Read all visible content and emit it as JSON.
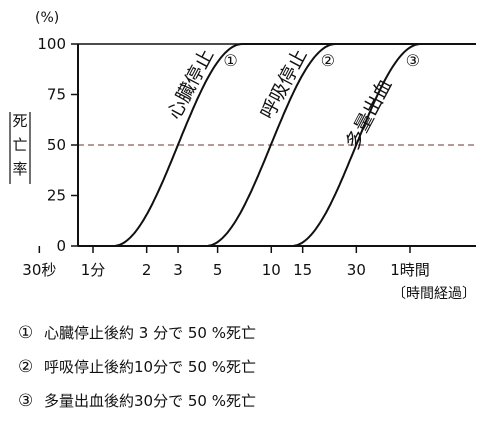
{
  "chart_data": {
    "type": "line",
    "ylabel": "死亡率",
    "yunit": "(%)",
    "xlabel": "〔時間経過〕",
    "x_scale": "log",
    "ylim": [
      0,
      100
    ],
    "yticks": [
      0,
      25,
      50,
      75,
      100
    ],
    "xticks": [
      {
        "label": "30秒",
        "minutes": 0.5
      },
      {
        "label": "1分",
        "minutes": 1
      },
      {
        "label": "2",
        "minutes": 2
      },
      {
        "label": "3",
        "minutes": 3
      },
      {
        "label": "5",
        "minutes": 5
      },
      {
        "label": "10",
        "minutes": 10
      },
      {
        "label": "15",
        "minutes": 15
      },
      {
        "label": "30",
        "minutes": 30
      },
      {
        "label": "1時間",
        "minutes": 60
      }
    ],
    "reference_line": {
      "y": 50,
      "style": "dashed"
    },
    "series": [
      {
        "name": "心臓停止",
        "marker": "①",
        "x": [
          1.3,
          3,
          6.9
        ],
        "y": [
          0,
          50,
          100
        ]
      },
      {
        "name": "呼吸停止",
        "marker": "②",
        "x": [
          4.3,
          10,
          23
        ],
        "y": [
          0,
          50,
          100
        ]
      },
      {
        "name": "多量出血",
        "marker": "③",
        "x": [
          13,
          30,
          69
        ],
        "y": [
          0,
          50,
          100
        ]
      }
    ],
    "notes": [
      {
        "mark": "①",
        "text": "心臓停止後約 3 分で 50 %死亡"
      },
      {
        "mark": "②",
        "text": "呼吸停止後約10分で 50 %死亡"
      },
      {
        "mark": "③",
        "text": "多量出血後約30分で 50 %死亡"
      }
    ]
  }
}
